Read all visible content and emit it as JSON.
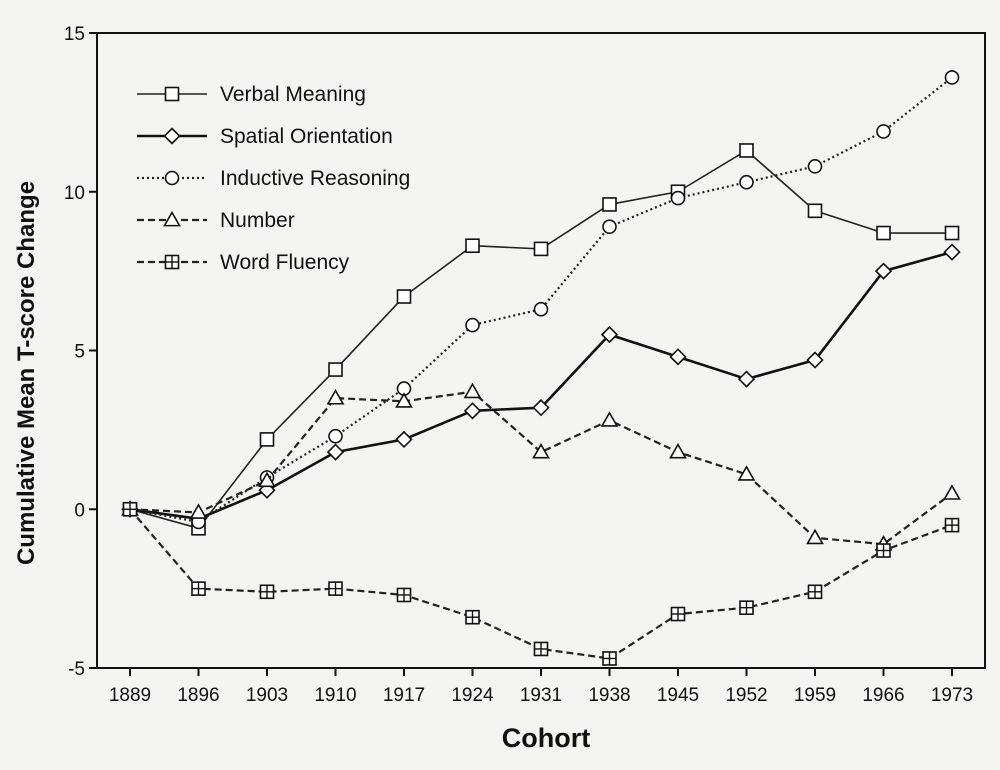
{
  "chart_data": {
    "type": "line",
    "xlabel": "Cohort",
    "ylabel": "Cumulative Mean T-score Change",
    "categories": [
      "1889",
      "1896",
      "1903",
      "1910",
      "1917",
      "1924",
      "1931",
      "1938",
      "1945",
      "1952",
      "1959",
      "1966",
      "1973"
    ],
    "yticks": [
      -5,
      0,
      5,
      10,
      15
    ],
    "ylim": [
      -5,
      15
    ],
    "grid": false,
    "legend_position": "top-left",
    "series": [
      {
        "name": "Verbal Meaning",
        "marker": "square",
        "line": "solid",
        "values": [
          0,
          -0.6,
          2.2,
          4.4,
          6.7,
          8.3,
          8.2,
          9.6,
          10,
          11.3,
          9.4,
          8.7,
          8.7
        ]
      },
      {
        "name": "Spatial Orientation",
        "marker": "diamond",
        "line": "solid-bold",
        "values": [
          0,
          -0.3,
          0.6,
          1.8,
          2.2,
          3.1,
          3.2,
          5.5,
          4.8,
          4.1,
          4.7,
          7.5,
          8.1
        ]
      },
      {
        "name": "Inductive Reasoning",
        "marker": "circle",
        "line": "dotted",
        "values": [
          0,
          -0.4,
          1.0,
          2.3,
          3.8,
          5.8,
          6.3,
          8.9,
          9.8,
          10.3,
          10.8,
          11.9,
          13.6
        ]
      },
      {
        "name": "Number",
        "marker": "triangle",
        "line": "dashed",
        "values": [
          0,
          -0.1,
          0.9,
          3.5,
          3.4,
          3.7,
          1.8,
          2.8,
          1.8,
          1.1,
          -0.9,
          -1.1,
          0.5
        ]
      },
      {
        "name": "Word Fluency",
        "marker": "crossed-square",
        "line": "dashed",
        "values": [
          0,
          -2.5,
          -2.6,
          -2.5,
          -2.7,
          -3.4,
          -4.4,
          -4.7,
          -3.3,
          -3.1,
          -2.6,
          -1.3,
          -0.5
        ]
      }
    ]
  }
}
